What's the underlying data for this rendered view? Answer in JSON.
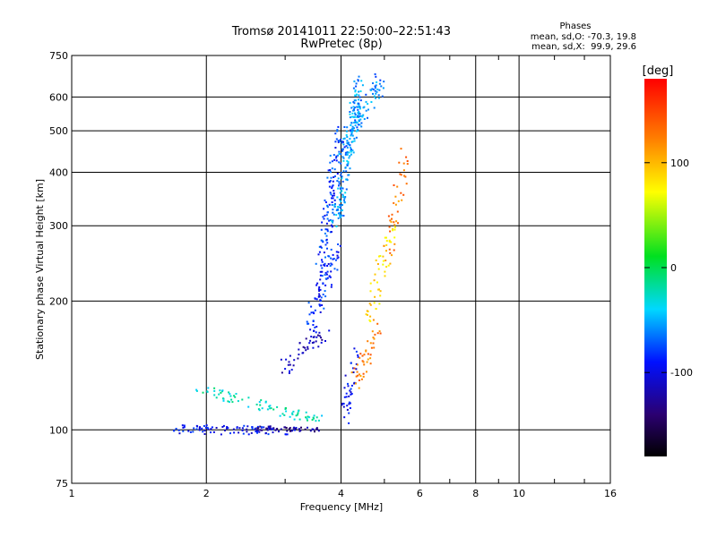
{
  "chart_data": {
    "type": "scatter",
    "title": "Tromsø 20141011 22:50:00–22:51:43",
    "subtitle": "RwPretec (8p)",
    "xlabel": "Frequency [MHz]",
    "ylabel": "Stationary phase Virtual Height [km]",
    "x_scale": "log2",
    "y_scale": "log",
    "xlim": [
      1,
      16
    ],
    "ylim": [
      75,
      750
    ],
    "x_ticks": [
      "1",
      "2",
      "4",
      "6",
      "8",
      "10",
      "16"
    ],
    "x_tick_values": [
      1,
      2,
      4,
      6,
      8,
      10,
      16
    ],
    "y_ticks": [
      "75",
      "100",
      "200",
      "300",
      "400",
      "500",
      "600",
      "750"
    ],
    "y_tick_values": [
      75,
      100,
      200,
      300,
      400,
      500,
      600,
      750
    ],
    "grid": true,
    "colorbar": {
      "label": "[deg]",
      "range": [
        -180,
        180
      ],
      "ticks": [
        "100",
        "0",
        "-100"
      ],
      "tick_values": [
        100,
        0,
        -100
      ]
    },
    "stats": {
      "title": "Phases",
      "line1": "mean, sd,O: -70.3, 19.8",
      "line2": "mean, sd,X:  99.9, 29.6"
    },
    "traces": [
      {
        "f_range": [
          1.65,
          3.2
        ],
        "h": [
          100,
          100
        ],
        "phase": -95,
        "n": 90,
        "spread": 0.025
      },
      {
        "f_range": [
          1.9,
          3.6
        ],
        "h": [
          125,
          105
        ],
        "phase": -25,
        "n": 80,
        "spread": 0.03
      },
      {
        "f_range": [
          2.6,
          3.6
        ],
        "h": [
          101,
          100
        ],
        "phase": -125,
        "n": 45,
        "spread": 0.012
      },
      {
        "f_range": [
          3.0,
          3.7
        ],
        "h": [
          140,
          170
        ],
        "phase": -115,
        "n": 45,
        "spread": 0.05
      },
      {
        "f_range": [
          3.4,
          3.9
        ],
        "h": [
          175,
          260
        ],
        "phase": -85,
        "n": 90,
        "spread": 0.06
      },
      {
        "f_range": [
          3.6,
          4.0
        ],
        "h": [
          240,
          500
        ],
        "phase": -80,
        "n": 110,
        "spread": 0.06
      },
      {
        "f_range": [
          3.9,
          4.4
        ],
        "h": [
          300,
          650
        ],
        "phase": -55,
        "n": 170,
        "spread": 0.05
      },
      {
        "f_range": [
          4.0,
          4.9
        ],
        "h": [
          450,
          650
        ],
        "phase": -60,
        "n": 90,
        "spread": 0.06
      },
      {
        "f_range": [
          4.05,
          4.3
        ],
        "h": [
          105,
          150
        ],
        "phase": -95,
        "n": 40,
        "spread": 0.05
      },
      {
        "f_range": [
          4.3,
          4.9
        ],
        "h": [
          130,
          180
        ],
        "phase": 125,
        "n": 45,
        "spread": 0.05
      },
      {
        "f_range": [
          4.6,
          5.2
        ],
        "h": [
          180,
          300
        ],
        "phase": 85,
        "n": 50,
        "spread": 0.06
      },
      {
        "f_range": [
          5.1,
          5.6
        ],
        "h": [
          260,
          430
        ],
        "phase": 125,
        "n": 40,
        "spread": 0.06
      }
    ]
  }
}
